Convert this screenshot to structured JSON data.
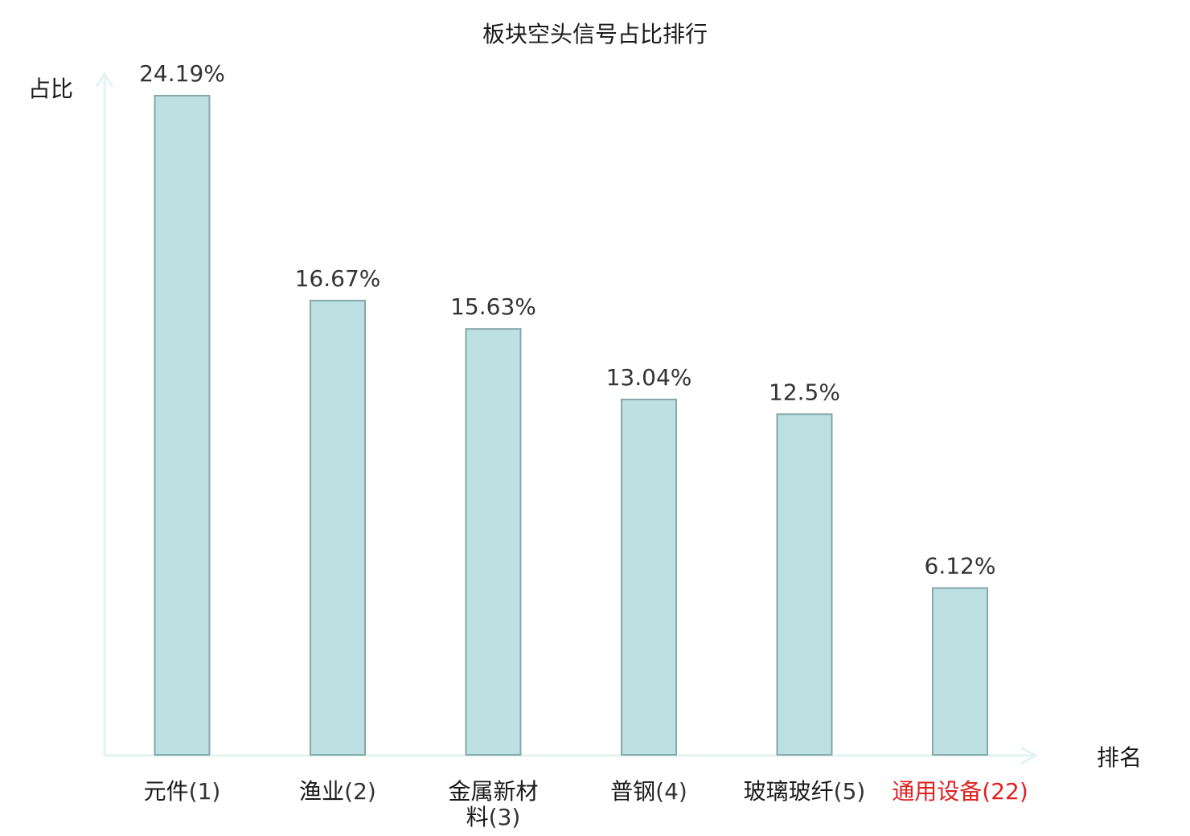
{
  "chart_data": {
    "type": "bar",
    "title": "板块空头信号占比排行",
    "xlabel": "排名",
    "ylabel": "占比",
    "ylim": [
      0,
      24.19
    ],
    "grid": false,
    "categories": [
      {
        "name": "元件",
        "rank": "(1)",
        "highlight": false
      },
      {
        "name": "渔业",
        "rank": "(2)",
        "highlight": false
      },
      {
        "name": "金属新材料",
        "rank": "(3)",
        "highlight": false
      },
      {
        "name": "普钢",
        "rank": "(4)",
        "highlight": false
      },
      {
        "name": "玻璃玻纤",
        "rank": "(5)",
        "highlight": false
      },
      {
        "name": "通用设备",
        "rank": "(22)",
        "highlight": true
      }
    ],
    "values": [
      24.19,
      16.67,
      15.63,
      13.04,
      12.5,
      6.12
    ],
    "value_labels": [
      "24.19%",
      "16.67%",
      "15.63%",
      "13.04%",
      "12.5%",
      "6.12%"
    ]
  },
  "colors": {
    "bar_fill": "#bde0e3",
    "bar_stroke": "#86a8ab",
    "axis": "#e3f3f0",
    "text": "#1a1a1a",
    "value_text": "#333333",
    "highlight_text": "#e02020"
  }
}
